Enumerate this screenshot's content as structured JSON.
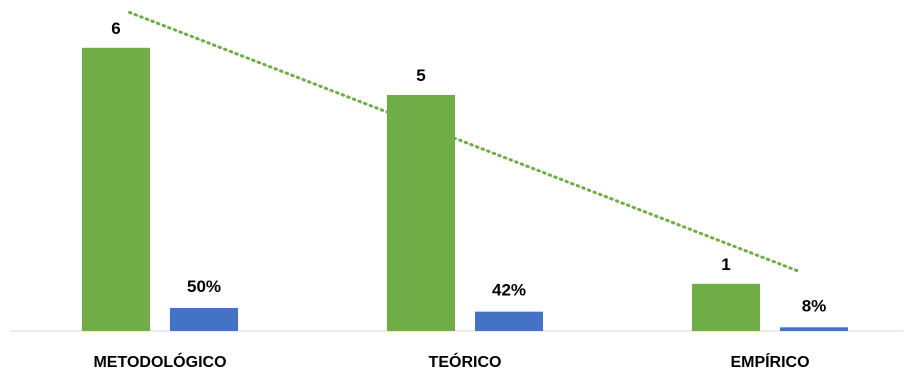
{
  "chart_data": {
    "type": "bar",
    "categories": [
      "METODOLÓGICO",
      "TEÓRICO",
      "EMPÍRICO"
    ],
    "series": [
      {
        "values": [
          6,
          5,
          1
        ],
        "labels": [
          "6",
          "5",
          "1"
        ],
        "color": "#70ad47"
      },
      {
        "values": [
          50,
          42,
          8
        ],
        "labels": [
          "50%",
          "42%",
          "8%"
        ],
        "color": "#4472c4"
      }
    ],
    "trendline": {
      "series_index": 0,
      "style": "dotted",
      "type": "linear",
      "color": "#70ad47"
    },
    "title": "",
    "xlabel": "",
    "ylabel": "",
    "gridlines": false,
    "legend": "none"
  }
}
